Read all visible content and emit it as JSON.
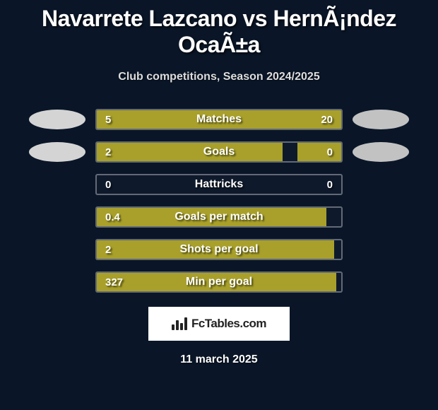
{
  "title": "Navarrete Lazcano vs HernÃ¡ndez OcaÃ±a",
  "subtitle": "Club competitions, Season 2024/2025",
  "date": "11 march 2025",
  "brand": "FcTables.com",
  "colors": {
    "background": "#0a1628",
    "fill": "#a8a02a",
    "ellipse_left": "#d4d4d4",
    "ellipse_right": "#c2c2c2",
    "border": "rgba(255,255,255,0.35)"
  },
  "player_left": {
    "name": "Navarrete Lazcano"
  },
  "player_right": {
    "name": "HernÃ¡ndez OcaÃ±a"
  },
  "stats": [
    {
      "label": "Matches",
      "left_value": "5",
      "right_value": "20",
      "left_raw": 5,
      "right_raw": 20,
      "left_pct": 20,
      "right_pct": 80,
      "show_ellipses": true
    },
    {
      "label": "Goals",
      "left_value": "2",
      "right_value": "0",
      "left_raw": 2,
      "right_raw": 0,
      "left_pct": 76,
      "right_pct": 18,
      "show_ellipses": true
    },
    {
      "label": "Hattricks",
      "left_value": "0",
      "right_value": "0",
      "left_raw": 0,
      "right_raw": 0,
      "left_pct": 0,
      "right_pct": 0,
      "show_ellipses": false
    },
    {
      "label": "Goals per match",
      "left_value": "0.4",
      "right_value": "",
      "left_raw": 0.4,
      "right_raw": 0,
      "left_pct": 94,
      "right_pct": 0,
      "show_ellipses": false
    },
    {
      "label": "Shots per goal",
      "left_value": "2",
      "right_value": "",
      "left_raw": 2,
      "right_raw": 0,
      "left_pct": 97,
      "right_pct": 0,
      "show_ellipses": false
    },
    {
      "label": "Min per goal",
      "left_value": "327",
      "right_value": "",
      "left_raw": 327,
      "right_raw": 0,
      "left_pct": 98,
      "right_pct": 0,
      "show_ellipses": false
    }
  ]
}
